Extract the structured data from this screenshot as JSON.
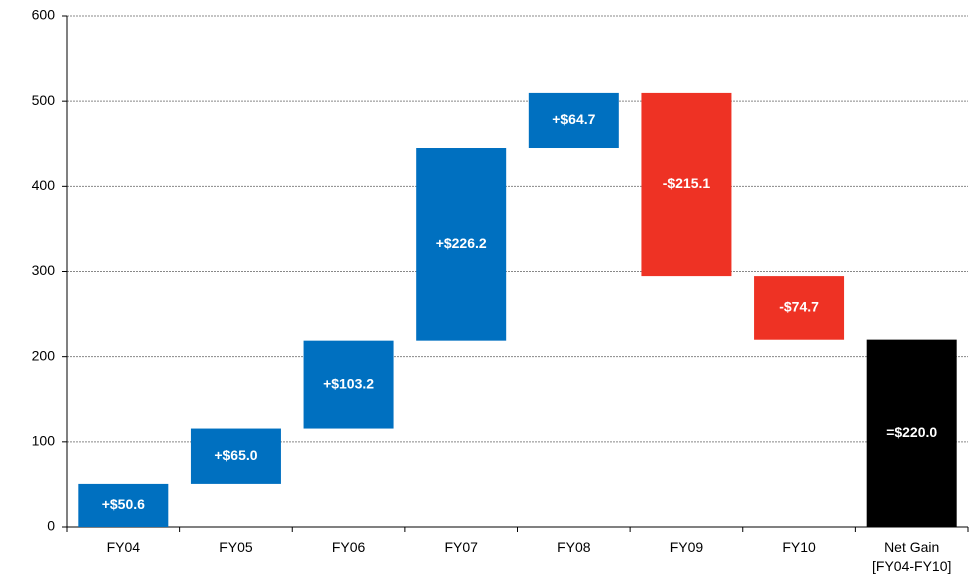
{
  "chart_data": {
    "type": "waterfall",
    "categories": [
      "FY04",
      "FY05",
      "FY06",
      "FY07",
      "FY08",
      "FY09",
      "FY10",
      "Net Gain\n[FY04-FY10]"
    ],
    "values": [
      50.6,
      65.0,
      103.2,
      226.2,
      64.7,
      -215.1,
      -74.7,
      220.0
    ],
    "value_labels": [
      "+$50.6",
      "+$65.0",
      "+$103.2",
      "+$226.2",
      "+$64.7",
      "-$215.1",
      "-$74.7",
      "=$220.0"
    ],
    "colors": {
      "increase": "#0070c0",
      "decrease": "#ee3224",
      "total": "#000000"
    },
    "ylim": [
      0,
      600
    ],
    "yticks": [
      0,
      100,
      200,
      300,
      400,
      500,
      600
    ],
    "grid": true
  }
}
